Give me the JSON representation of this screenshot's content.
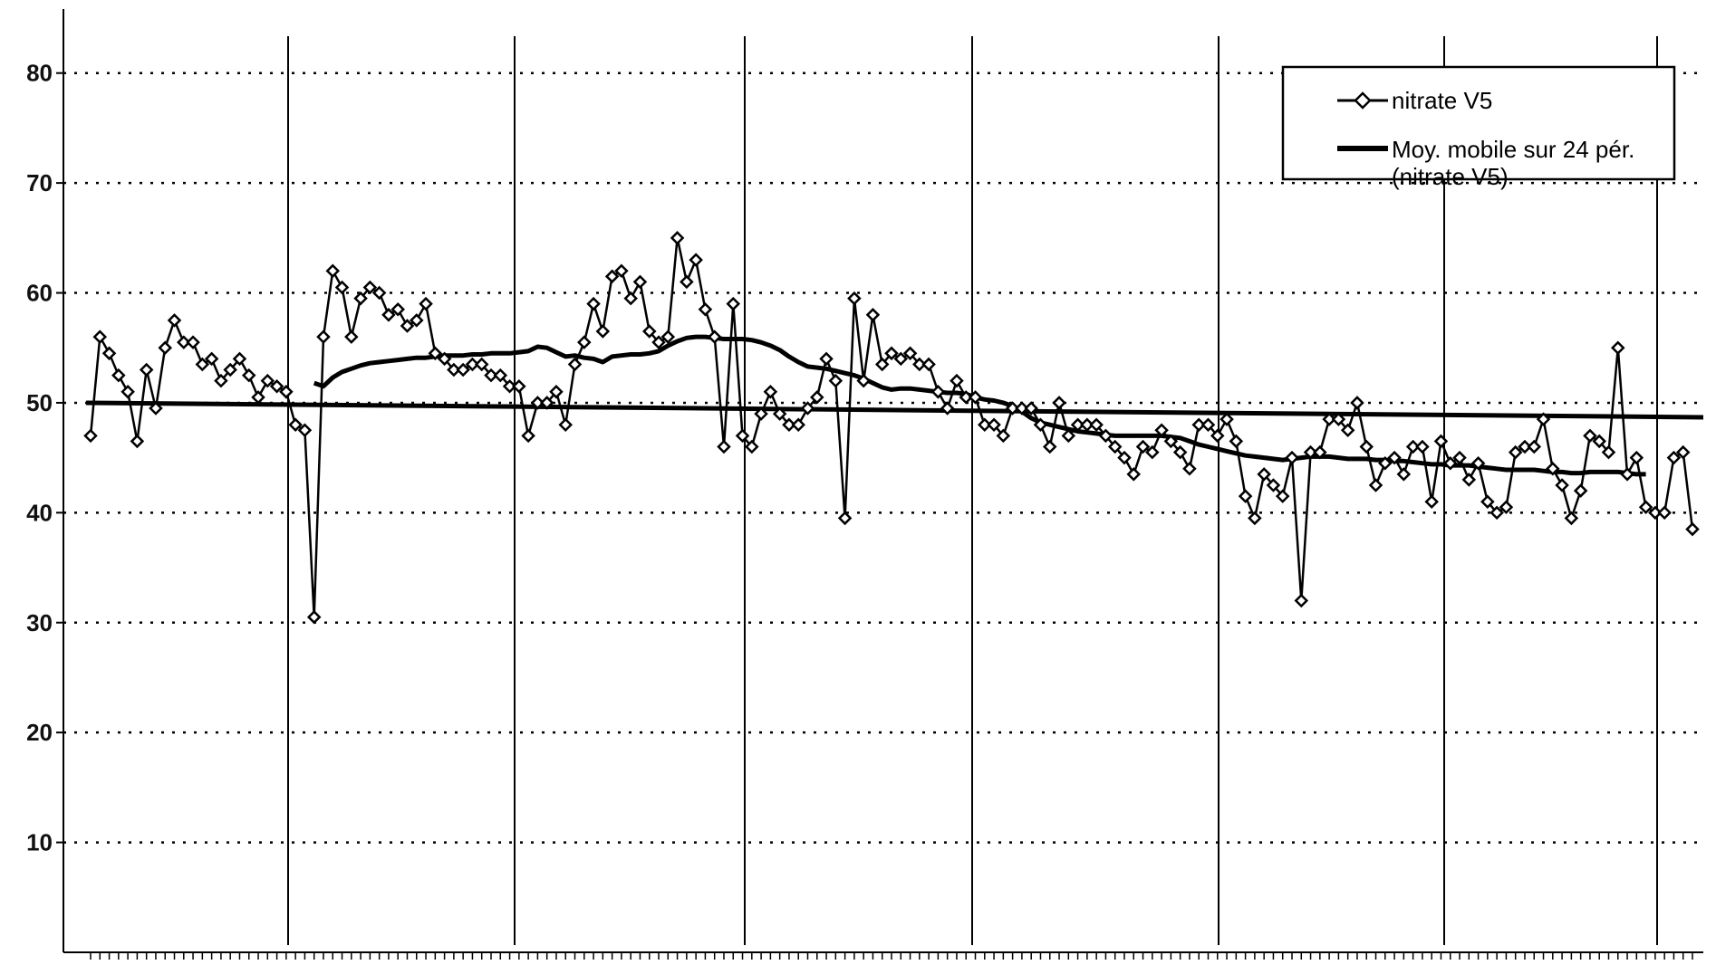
{
  "chart_data": {
    "type": "line",
    "title": "",
    "xlabel": "",
    "ylabel": "",
    "ylim": [
      0,
      85
    ],
    "yticks": [
      10,
      20,
      30,
      40,
      50,
      60,
      70,
      80
    ],
    "grid": "dotted horizontal gridlines, vertical separator lines",
    "legend_position": "top-right",
    "reference_line": 50,
    "series": [
      {
        "name": "nitrate V5",
        "marker": "diamond",
        "color": "#000000",
        "values": [
          47,
          56,
          54.5,
          52.5,
          51,
          46.5,
          53,
          49.5,
          55,
          57.5,
          55.5,
          55.5,
          53.5,
          54,
          52,
          53,
          54,
          52.5,
          50.5,
          52,
          51.5,
          51,
          48,
          47.5,
          30.5,
          56,
          62,
          60.5,
          56,
          59.5,
          60.5,
          60,
          58,
          58.5,
          57,
          57.5,
          59,
          54.5,
          54,
          53,
          53,
          53.5,
          53.5,
          52.5,
          52.5,
          51.5,
          51.5,
          47,
          50,
          50,
          51,
          48,
          53.5,
          55.5,
          59,
          56.5,
          61.5,
          62,
          59.5,
          61,
          56.5,
          55.5,
          56,
          65,
          61,
          63,
          58.5,
          56,
          46,
          59,
          47,
          46,
          49,
          51,
          49,
          48,
          48,
          49.5,
          50.5,
          54,
          52,
          39.5,
          59.5,
          52,
          58,
          53.5,
          54.5,
          54,
          54.5,
          53.5,
          53.5,
          51,
          49.5,
          52,
          50.5,
          50.5,
          48,
          48,
          47,
          49.5,
          49.5,
          49.5,
          48,
          46,
          50,
          47,
          48,
          48,
          48,
          47,
          46,
          45,
          43.5,
          46,
          45.5,
          47.5,
          46.5,
          45.5,
          44,
          48,
          48,
          47,
          48.5,
          46.5,
          41.5,
          39.5,
          43.5,
          42.5,
          41.5,
          45,
          32,
          45.5,
          45.5,
          48.5,
          48.5,
          47.5,
          50,
          46,
          42.5,
          44.5,
          45,
          43.5,
          46,
          46,
          41,
          46.5,
          44.5,
          45,
          43,
          44.5,
          41,
          40,
          40.5,
          45.5,
          46,
          46,
          48.5,
          44,
          42.5,
          39.5,
          42,
          47,
          46.5,
          45.5,
          55,
          43.5,
          45,
          40.5,
          40,
          40,
          45,
          45.5,
          38.5
        ]
      },
      {
        "name": "Moy. mobile sur 24 pér. (nitrate V5)",
        "color": "#000000",
        "start_index": 24,
        "values": [
          51.8,
          51.5,
          52.3,
          52.8,
          53.1,
          53.4,
          53.6,
          53.7,
          53.8,
          53.9,
          54,
          54.1,
          54.1,
          54.2,
          54.3,
          54.3,
          54.3,
          54.4,
          54.4,
          54.5,
          54.5,
          54.5,
          54.6,
          54.7,
          55.1,
          55,
          54.6,
          54.2,
          54.3,
          54.1,
          54,
          53.7,
          54.2,
          54.3,
          54.4,
          54.4,
          54.5,
          54.7,
          55.2,
          55.6,
          55.9,
          56,
          56,
          55.9,
          55.8,
          55.8,
          55.8,
          55.7,
          55.5,
          55.2,
          54.8,
          54.2,
          53.7,
          53.3,
          53.2,
          53.1,
          52.9,
          52.7,
          52.5,
          52.2,
          51.8,
          51.4,
          51.2,
          51.3,
          51.3,
          51.2,
          51.1,
          51,
          50.9,
          50.9,
          50.8,
          50.5,
          50.3,
          50.2,
          50,
          49.7,
          49.2,
          48.6,
          48.2,
          48,
          47.8,
          47.6,
          47.4,
          47.3,
          47.2,
          47.1,
          47,
          47,
          47,
          47,
          47,
          47,
          46.9,
          46.8,
          46.5,
          46.2,
          46,
          45.8,
          45.6,
          45.4,
          45.2,
          45.1,
          45,
          44.9,
          44.8,
          44.9,
          45,
          45.1,
          45.1,
          45.1,
          45,
          44.9,
          44.9,
          44.9,
          44.8,
          44.8,
          44.7,
          44.7,
          44.6,
          44.5,
          44.4,
          44.4,
          44.3,
          44.3,
          44.3,
          44.2,
          44.1,
          44,
          43.9,
          43.9,
          43.9,
          43.9,
          43.8,
          43.7,
          43.7,
          43.6,
          43.6,
          43.7,
          43.7,
          43.7,
          43.7,
          43.6,
          43.5,
          43.5
        ]
      }
    ],
    "legend": [
      {
        "label_line1": "nitrate V5",
        "label_line2": ""
      },
      {
        "label_line1": "Moy. mobile sur 24 pér.",
        "label_line2": "(nitrate V5)"
      }
    ]
  }
}
